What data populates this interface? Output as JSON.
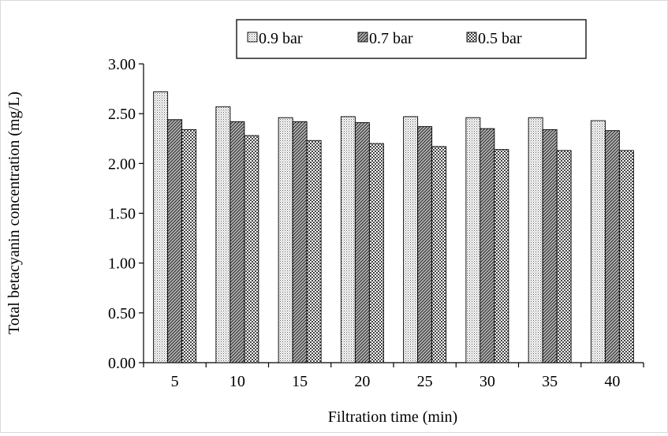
{
  "chart_data": {
    "type": "bar",
    "title": "",
    "xlabel": "Filtration time (min)",
    "ylabel": "Total betacyanin concentration  (mg/L)",
    "categories": [
      "5",
      "10",
      "15",
      "20",
      "25",
      "30",
      "35",
      "40"
    ],
    "series": [
      {
        "name": "0.9 bar",
        "pattern": "fine-dots",
        "values": [
          2.72,
          2.57,
          2.46,
          2.47,
          2.47,
          2.46,
          2.46,
          2.43
        ]
      },
      {
        "name": "0.7 bar",
        "pattern": "diagonal-hatch",
        "values": [
          2.44,
          2.42,
          2.42,
          2.41,
          2.37,
          2.35,
          2.34,
          2.33
        ]
      },
      {
        "name": "0.5 bar",
        "pattern": "coarse-dots",
        "values": [
          2.34,
          2.28,
          2.23,
          2.2,
          2.17,
          2.14,
          2.13,
          2.13
        ]
      }
    ],
    "ylim": [
      0,
      3.0
    ],
    "yticks": [
      "0.00",
      "0.50",
      "1.00",
      "1.50",
      "2.00",
      "2.50",
      "3.00"
    ],
    "grid": false,
    "legend_position": "top"
  }
}
